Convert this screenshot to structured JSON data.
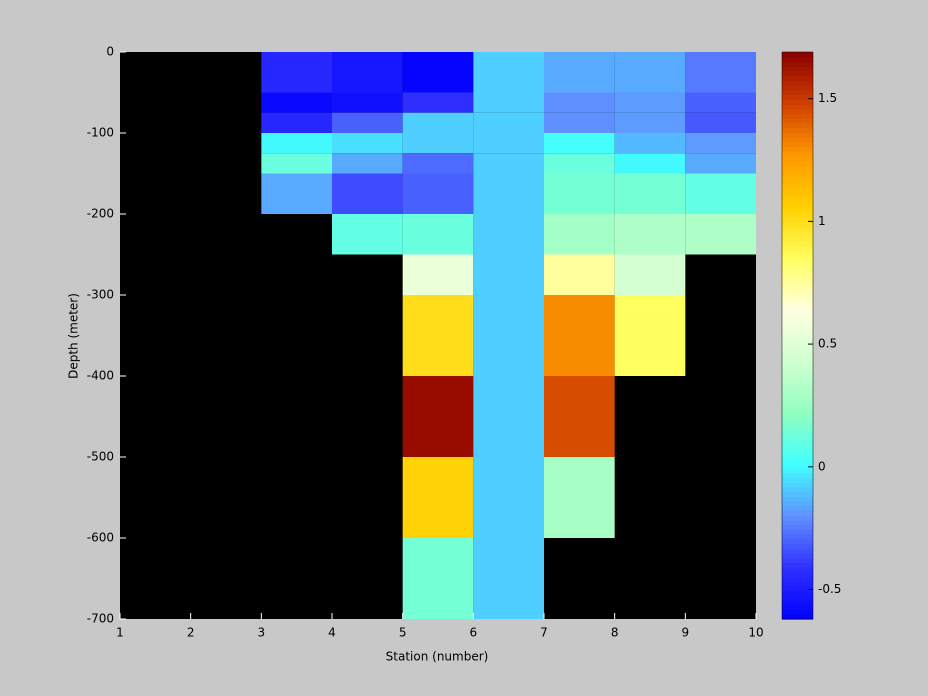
{
  "chart_data": {
    "type": "heatmap",
    "xlabel": "Station (number)",
    "ylabel": "Depth (meter)",
    "x": [
      1,
      2,
      3,
      4,
      5,
      6,
      7,
      8,
      9,
      10
    ],
    "y": [
      0,
      -50,
      -75,
      -100,
      -125,
      -150,
      -200,
      -250,
      -300,
      -400,
      -500,
      -600,
      -700
    ],
    "z": [
      [
        null,
        null,
        -0.45,
        -0.52,
        -0.6,
        -0.08,
        -0.15,
        -0.15,
        -0.25
      ],
      [
        null,
        null,
        -0.58,
        -0.55,
        -0.42,
        -0.08,
        -0.2,
        -0.18,
        -0.3
      ],
      [
        null,
        null,
        -0.45,
        -0.3,
        -0.08,
        -0.08,
        -0.2,
        -0.18,
        -0.32
      ],
      [
        null,
        null,
        0.0,
        -0.05,
        -0.08,
        -0.08,
        0.02,
        -0.12,
        -0.18
      ],
      [
        null,
        null,
        0.12,
        -0.15,
        -0.28,
        -0.08,
        0.12,
        0.0,
        -0.15
      ],
      [
        null,
        null,
        -0.15,
        -0.35,
        -0.3,
        -0.08,
        0.15,
        0.15,
        0.1
      ],
      [
        null,
        null,
        null,
        0.1,
        0.12,
        -0.08,
        0.28,
        0.32,
        0.32
      ],
      [
        null,
        null,
        null,
        null,
        0.55,
        -0.08,
        0.75,
        0.45,
        null
      ],
      [
        null,
        null,
        null,
        null,
        1.0,
        -0.08,
        1.3,
        0.85,
        null
      ],
      [
        null,
        null,
        null,
        null,
        1.65,
        -0.08,
        1.45,
        null,
        null
      ],
      [
        null,
        null,
        null,
        null,
        1.05,
        -0.08,
        0.3,
        null,
        null
      ],
      [
        null,
        null,
        null,
        null,
        0.15,
        -0.08,
        null,
        null,
        null
      ]
    ],
    "xlim": [
      1,
      10
    ],
    "xticks": [
      1,
      2,
      3,
      4,
      5,
      6,
      7,
      8,
      9,
      10
    ],
    "ylim": [
      -700,
      0
    ],
    "yticks": [
      0,
      -100,
      -200,
      -300,
      -400,
      -500,
      -600,
      -700
    ],
    "clim": [
      -0.62,
      1.69
    ],
    "cticks": [
      -0.5,
      0,
      0.5,
      1,
      1.5
    ],
    "missing_color": "#000000",
    "colormap": [
      "#0000ff",
      "#3030ff",
      "#6090ff",
      "#40ffff",
      "#90ffc0",
      "#d0ffd0",
      "#ffffe0",
      "#ffff60",
      "#ffd000",
      "#ff9900",
      "#d04000",
      "#8b0000"
    ]
  }
}
